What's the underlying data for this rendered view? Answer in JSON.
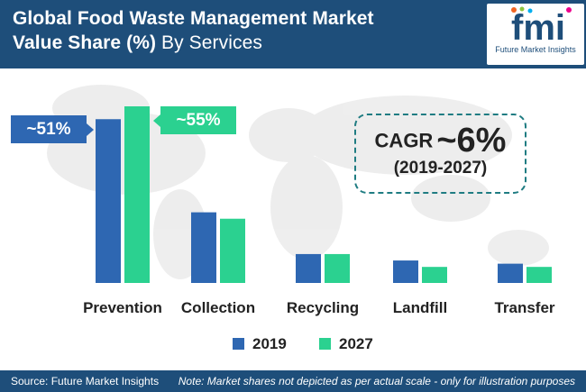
{
  "header": {
    "title_line1": "Global Food Waste Management Market",
    "title_line2_bold": "Value Share (%)",
    "title_line2_light": " By Services"
  },
  "logo": {
    "letters": "fmi",
    "tagline": "Future Market Insights"
  },
  "colors": {
    "series_2019": "#2e67b2",
    "series_2027": "#2bd190",
    "header": "#1e4e7a",
    "cagr_border": "#1f7c82"
  },
  "callouts": {
    "label_2019": "~51%",
    "label_2027": "~55%"
  },
  "cagr": {
    "word": "CAGR",
    "value": "~6%",
    "period": "(2019-2027)"
  },
  "chart_data": {
    "type": "bar",
    "categories": [
      "Prevention",
      "Collection",
      "Recycling",
      "Landfill",
      "Transfer"
    ],
    "series": [
      {
        "name": "2019",
        "values": [
          51,
          22,
          9,
          7,
          6
        ],
        "color": "#2e67b2"
      },
      {
        "name": "2027",
        "values": [
          55,
          20,
          9,
          5,
          5
        ],
        "color": "#2bd190"
      }
    ],
    "legend_position": "bottom",
    "grid": false,
    "ylim": [
      0,
      55
    ]
  },
  "footer": {
    "source": "Source: Future Market Insights",
    "note": "Note: Market shares not depicted as per actual scale - only for illustration purposes"
  }
}
